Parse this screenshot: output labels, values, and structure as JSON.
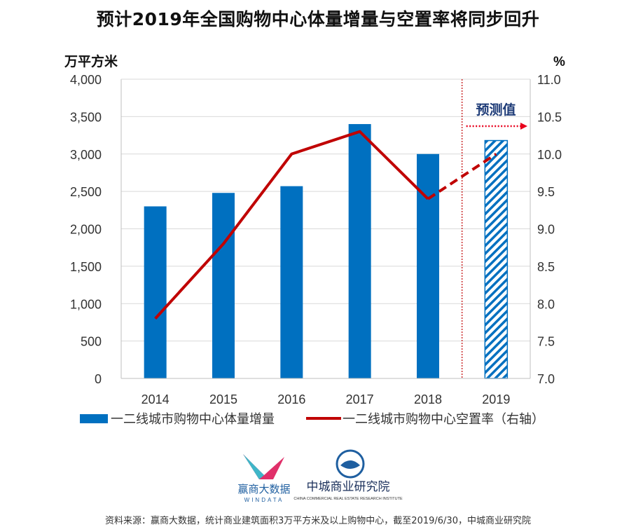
{
  "title": "预计2019年全国购物中心体量增量与空置率将同步回升",
  "chart_data": {
    "type": "bar",
    "categories": [
      "2014",
      "2015",
      "2016",
      "2017",
      "2018",
      "2019"
    ],
    "series": [
      {
        "name": "一二线城市购物中心体量增量",
        "type": "bar",
        "axis": "left",
        "values": [
          2300,
          2480,
          2570,
          3400,
          3000,
          3180
        ],
        "forecast_from_index": 5,
        "color": "#0070C0"
      },
      {
        "name": "一二线城市购物中心空置率（右轴）",
        "type": "line",
        "axis": "right",
        "values": [
          7.8,
          8.8,
          10.0,
          10.3,
          9.4,
          10.0
        ],
        "forecast_from_index": 4,
        "color": "#C00000"
      }
    ],
    "left_axis": {
      "unit": "万平方米",
      "min": 0,
      "max": 4000,
      "step": 500,
      "ticks": [
        "0",
        "500",
        "1,000",
        "1,500",
        "2,000",
        "2,500",
        "3,000",
        "3,500",
        "4,000"
      ]
    },
    "right_axis": {
      "unit": "%",
      "min": 7.0,
      "max": 11.0,
      "step": 0.5,
      "ticks": [
        "7.0",
        "7.5",
        "8.0",
        "8.5",
        "9.0",
        "9.5",
        "10.0",
        "10.5",
        "11.0"
      ]
    },
    "forecast_label": "预测值",
    "grid": true,
    "legend_position": "bottom",
    "arrow_color": "#E8001C",
    "divider_color": "#C00000"
  },
  "logos": {
    "left_text": "赢商大数据",
    "left_sub": "WINDATA",
    "right_text": "中城商业研究院",
    "right_sub": "CHINA COMMERCIAL REAL ESTATE RESEARCH INSTITUTE"
  },
  "source": "资料来源：赢商大数据，统计商业建筑面积3万平方米及以上购物中心，截至2019/6/30，中城商业研究院"
}
